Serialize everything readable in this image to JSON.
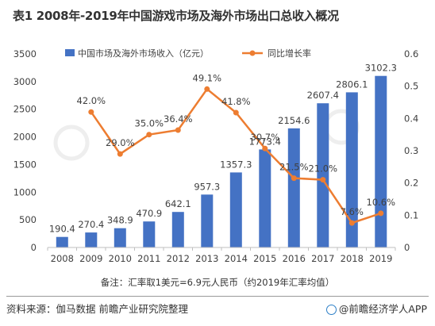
{
  "title": "表1 2008年-2019年中国游戏市场及海外市场出口总收入概况",
  "note": "备注：汇率取1美元=6.9元人民币（约2019年汇率均值）",
  "source": "资料来源：伽马数据 前瞻产业研究院整理",
  "brand": "@前瞻经济学人APP",
  "colors": {
    "bar": "#4472c4",
    "line": "#ed7d31",
    "axis": "#404040"
  },
  "chart_data": {
    "type": "bar",
    "categories": [
      "2008",
      "2009",
      "2010",
      "2011",
      "2012",
      "2013",
      "2014",
      "2015",
      "2016",
      "2017",
      "2018",
      "2019"
    ],
    "series": [
      {
        "name": "中国市场及海外市场收入（亿元）",
        "type": "bar",
        "axis": "left",
        "values": [
          190.4,
          270.4,
          348.9,
          470.9,
          642.1,
          957.3,
          1357.3,
          1773.4,
          2154.6,
          2607.4,
          2806.1,
          3102.3
        ],
        "labels": [
          "190.4",
          "270.4",
          "348.9",
          "470.9",
          "642.1",
          "957.3",
          "1357.3",
          "1773.4",
          "2154.6",
          "2607.4",
          "2806.1",
          "3102.3"
        ]
      },
      {
        "name": "同比增长率",
        "type": "line",
        "axis": "right",
        "values": [
          null,
          0.42,
          0.29,
          0.35,
          0.364,
          0.491,
          0.418,
          0.307,
          0.215,
          0.21,
          0.076,
          0.106
        ],
        "labels": [
          "",
          "42.0%",
          "29.0%",
          "35.0%",
          "36.4%",
          "49.1%",
          "41.8%",
          "30.7%",
          "21.5%",
          "21.0%",
          "7.6%",
          "10.6%"
        ]
      }
    ],
    "ylim_left": [
      0,
      3500
    ],
    "yticks_left": [
      "0",
      "500",
      "1000",
      "1500",
      "2000",
      "2500",
      "3000",
      "3500"
    ],
    "ylim_right": [
      0,
      0.6
    ],
    "yticks_right": [
      "0",
      "0.1",
      "0.2",
      "0.3",
      "0.4",
      "0.5",
      "0.6"
    ],
    "grid": false,
    "legend": "top"
  }
}
